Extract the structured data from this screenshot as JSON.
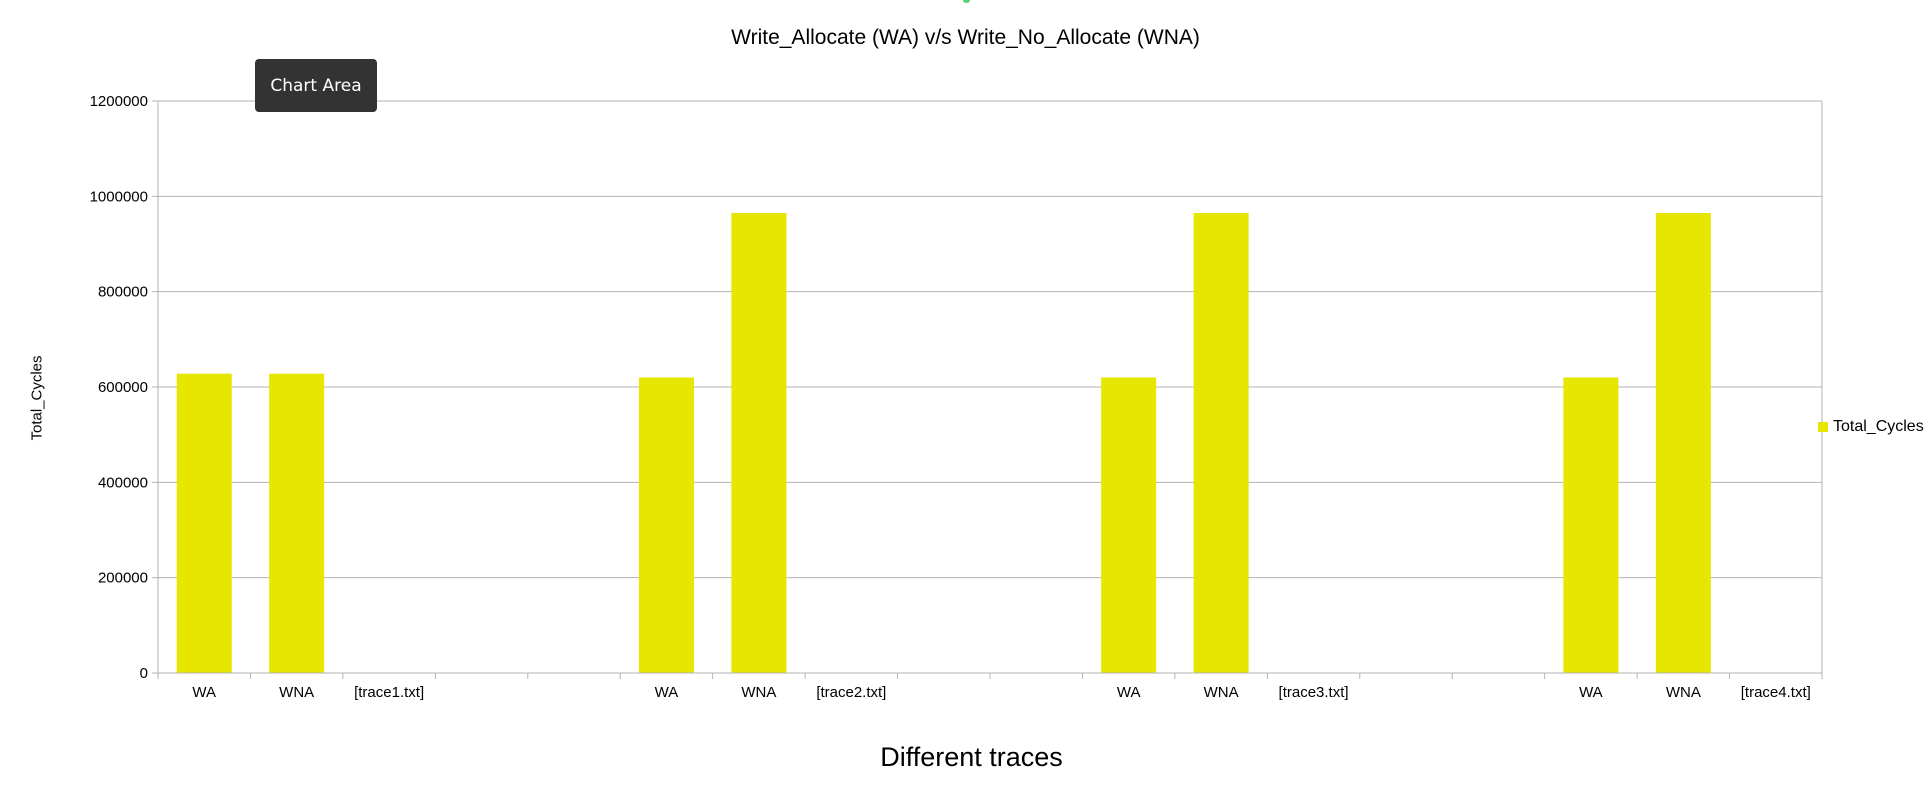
{
  "chart_data": {
    "type": "bar",
    "title": "Write_Allocate (WA) v/s Write_No_Allocate (WNA)",
    "xlabel": "Different traces",
    "ylabel": "Total_Cycles",
    "ylim": [
      0,
      1200000
    ],
    "yticks": [
      0,
      200000,
      400000,
      600000,
      800000,
      1000000,
      1200000
    ],
    "grid": true,
    "legend_position": "right",
    "categories": [
      "WA",
      "WNA",
      "[trace1.txt]",
      "",
      "",
      "WA",
      "WNA",
      "[trace2.txt]",
      "",
      "",
      "WA",
      "WNA",
      "[trace3.txt]",
      "",
      "",
      "WA",
      "WNA",
      "[trace4.txt]"
    ],
    "series": [
      {
        "name": "Total_Cycles",
        "color": "#e6e600",
        "values": [
          628000,
          628000,
          null,
          null,
          null,
          620000,
          965000,
          null,
          null,
          null,
          620000,
          965000,
          null,
          null,
          null,
          620000,
          965000,
          null
        ]
      }
    ]
  },
  "tooltip": {
    "text": "Chart Area"
  }
}
